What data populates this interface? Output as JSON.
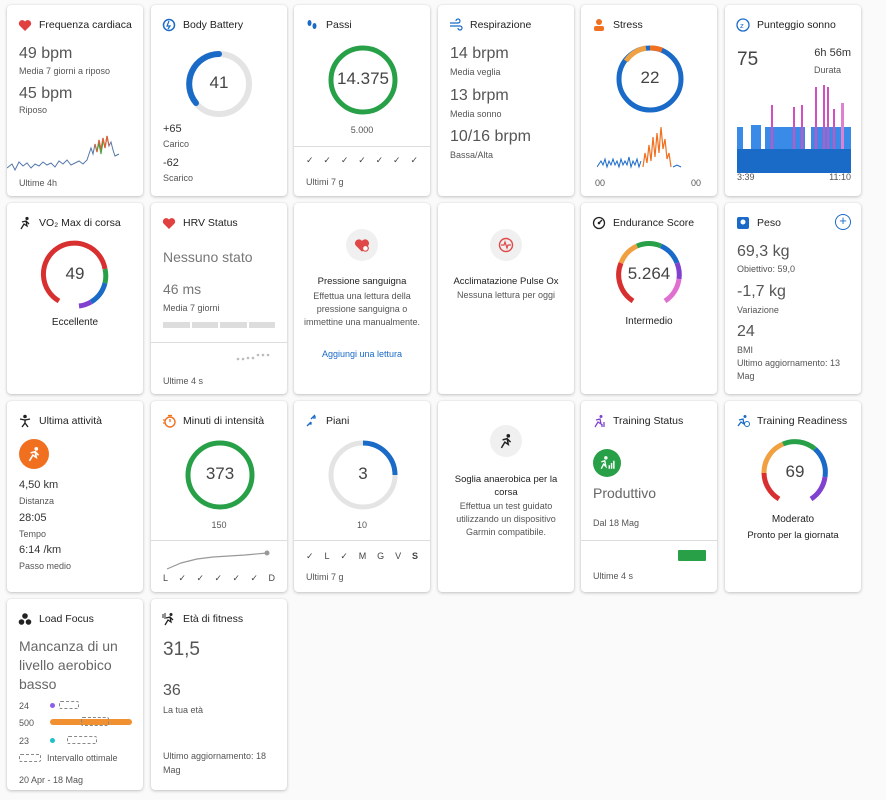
{
  "heart": {
    "title": "Frequenza cardiaca",
    "v1": "49 bpm",
    "l1": "Media 7 giorni a riposo",
    "v2": "45 bpm",
    "l2": "Riposo",
    "foot": "Ultime 4h"
  },
  "battery": {
    "title": "Body Battery",
    "value": "41",
    "v1": "+65",
    "l1": "Carico",
    "v2": "-62",
    "l2": "Scarico",
    "level": 0.41
  },
  "steps": {
    "title": "Passi",
    "value": "14.375",
    "goal": "5.000",
    "checks": [
      "✓",
      "✓",
      "✓",
      "✓",
      "✓",
      "✓",
      "✓"
    ],
    "foot": "Ultimi 7 g"
  },
  "resp": {
    "title": "Respirazione",
    "v1": "14 brpm",
    "l1": "Media veglia",
    "v2": "13 brpm",
    "l2": "Media sonno",
    "v3": "10/16 brpm",
    "l3": "Bassa/Alta"
  },
  "stress": {
    "title": "Stress",
    "value": "22",
    "t1": "00",
    "t2": "00"
  },
  "sleep": {
    "title": "Punteggio sonno",
    "score": "75",
    "duration": "6h 56m",
    "dlabel": "Durata",
    "t1": "3:39",
    "t2": "11:10"
  },
  "vo2": {
    "title": "VO₂ Max di corsa",
    "value": "49",
    "label": "Eccellente"
  },
  "hrv": {
    "title": "HRV Status",
    "status": "Nessuno stato",
    "ms": "46 ms",
    "mslabel": "Media 7 giorni",
    "foot": "Ultime 4 s"
  },
  "bp": {
    "title": "Pressione sanguigna",
    "desc": "Effettua una lettura della pressione sanguigna o immettine una manualmente.",
    "link": "Aggiungi una lettura"
  },
  "pulseox": {
    "title": "Acclimatazione Pulse Ox",
    "desc": "Nessuna lettura per oggi"
  },
  "endurance": {
    "title": "Endurance Score",
    "value": "5.264",
    "label": "Intermedio"
  },
  "weight": {
    "title": "Peso",
    "v1": "69,3 kg",
    "l1": "Obiettivo: 59,0",
    "v2": "-1,7 kg",
    "l2": "Variazione",
    "v3": "24",
    "l3": "BMI",
    "updated": "Ultimo aggiornamento: 13 Mag"
  },
  "activity": {
    "title": "Ultima attività",
    "v1": "4,50 km",
    "l1": "Distanza",
    "v2": "28:05",
    "l2": "Tempo",
    "v3": "6:14 /km",
    "l3": "Passo medio"
  },
  "intensity": {
    "title": "Minuti di intensità",
    "value": "373",
    "goal": "150",
    "days": [
      "L",
      "✓",
      "✓",
      "✓",
      "✓",
      "✓",
      "D"
    ]
  },
  "floors": {
    "title": "Piani",
    "value": "3",
    "goal": "10",
    "days": [
      "✓",
      "L",
      "✓",
      "M",
      "G",
      "V",
      "S"
    ],
    "foot": "Ultimi 7 g"
  },
  "anaerobic": {
    "title": "Soglia anaerobica per la corsa",
    "desc": "Effettua un test guidato utilizzando un dispositivo Garmin compatibile."
  },
  "training": {
    "title": "Training Status",
    "status": "Produttivo",
    "since": "Dal 18 Mag",
    "foot": "Ultime 4 s"
  },
  "readiness": {
    "title": "Training Readiness",
    "value": "69",
    "label": "Moderato",
    "sub": "Pronto per la giornata"
  },
  "load": {
    "title": "Load Focus",
    "status": "Mancanza di un livello aerobico basso",
    "r1": "24",
    "r2": "500",
    "r3": "23",
    "legend": "Intervallo ottimale",
    "foot": "20 Apr - 18 Mag"
  },
  "fitness": {
    "title": "Età di fitness",
    "value": "31,5",
    "age": "36",
    "agelabel": "La tua età",
    "updated": "Ultimo aggiornamento: 18 Mag"
  }
}
